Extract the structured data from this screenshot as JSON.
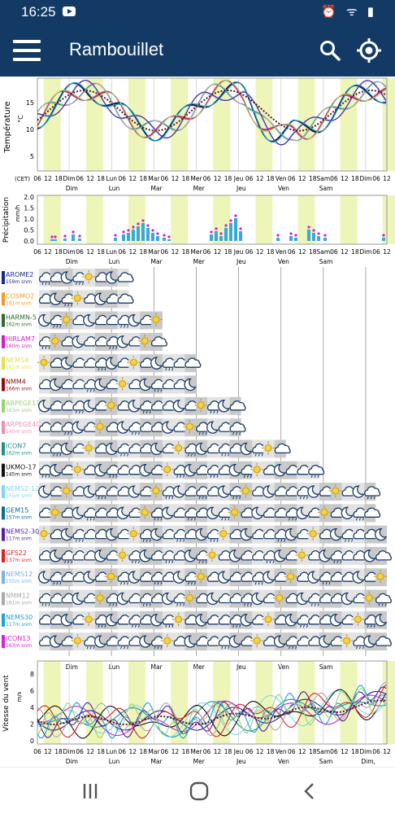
{
  "status_bar": {
    "time": "16:25"
  },
  "app_bar": {
    "title": "Rambouillet",
    "icons": [
      "menu-icon",
      "search-icon",
      "location-target-icon"
    ]
  },
  "temperature_chart": {
    "ylabel": "Température",
    "unit": "°C",
    "yticks": [
      "15",
      "10",
      "5"
    ],
    "cet_label": "(CET)",
    "xticks": [
      "06",
      "12",
      "18",
      "Dim",
      "06",
      "12",
      "18",
      "Lun",
      "06",
      "12",
      "18",
      "Mar",
      "06",
      "12",
      "18",
      "Mer",
      "06",
      "12",
      "18",
      "Jeu",
      "06",
      "12",
      "18",
      "Ven",
      "06",
      "12",
      "18",
      "Sam",
      "06",
      "12",
      "18",
      "Dim",
      "06",
      "12"
    ],
    "day_labels": [
      "Dim",
      "Lun",
      "Mar",
      "Mer",
      "Jeu",
      "Ven",
      "Sam"
    ]
  },
  "precip_chart": {
    "ylabel": "Précipitation",
    "unit": "mm/h",
    "yticks": [
      "2.0",
      "1.5",
      "1.0",
      "0.5",
      "0.0"
    ],
    "xticks": [
      "06",
      "12",
      "18",
      "Dim",
      "06",
      "12",
      "18",
      "Lun",
      "06",
      "12",
      "18",
      "Mar",
      "06",
      "12",
      "18",
      "Mer",
      "06",
      "12",
      "18",
      "Jeu",
      "06",
      "12",
      "18",
      "Ven",
      "06",
      "12",
      "18",
      "Sam",
      "06",
      "12",
      "18",
      "Dim",
      "06",
      "12"
    ],
    "day_labels": [
      "Dim",
      "Lun",
      "Mar",
      "Mer",
      "Jeu",
      "Ven",
      "Sam"
    ]
  },
  "models": [
    {
      "name": "AROME2",
      "alt": "159m snm",
      "color": "#1a2a8c",
      "n": 8
    },
    {
      "name": "COSMO2",
      "alt": "161m snm",
      "color": "#f39c1f",
      "n": 8
    },
    {
      "name": "HARMN-5",
      "alt": "162m snm",
      "color": "#2e6b2e",
      "n": 11
    },
    {
      "name": "HIRLAM7",
      "alt": "160m snm",
      "color": "#d11fc8",
      "n": 11
    },
    {
      "name": "NEMS4",
      "alt": "162m snm",
      "color": "#e7e04a",
      "n": 14
    },
    {
      "name": "NMM4",
      "alt": "166m snm",
      "color": "#8c1010",
      "n": 14
    },
    {
      "name": "ARPEGE11",
      "alt": "163m snm",
      "color": "#9ad17a",
      "n": 18
    },
    {
      "name": "ARPEGE40",
      "alt": "140m snm",
      "color": "#f08fb0",
      "n": 18
    },
    {
      "name": "ICON7",
      "alt": "162m snm",
      "color": "#1f8f8f",
      "n": 22
    },
    {
      "name": "UKMO-17",
      "alt": "145m snm",
      "color": "#111111",
      "n": 25
    },
    {
      "name": "NEMS2-12",
      "alt": "155m snm",
      "color": "#7fd7ef",
      "n": 30
    },
    {
      "name": "GEM15",
      "alt": "157m snm",
      "color": "#0c6e8a",
      "n": 30
    },
    {
      "name": "NEMS2-30",
      "alt": "117m snm",
      "color": "#5a1f9c",
      "n": 31
    },
    {
      "name": "GFS22",
      "alt": "137m snm",
      "color": "#e01f1f",
      "n": 31
    },
    {
      "name": "NEMS12",
      "alt": "155m snm",
      "color": "#7fb0df",
      "n": 31
    },
    {
      "name": "NMM12",
      "alt": "161m snm",
      "color": "#aaaaaa",
      "n": 31
    },
    {
      "name": "NEMS30",
      "alt": "117m snm",
      "color": "#1fa0d8",
      "n": 31
    },
    {
      "name": "ICON13",
      "alt": "163m snm",
      "color": "#e01fd8",
      "n": 31
    }
  ],
  "icon_day_labels": [
    "Dim",
    "Lun",
    "Mar",
    "Mer",
    "Jeu",
    "Ven",
    "Sam"
  ],
  "wind_chart": {
    "ylabel": "Vitesse du vent",
    "unit": "m/s",
    "yticks": [
      "8",
      "6",
      "4",
      "2",
      "0"
    ],
    "xticks": [
      "06",
      "12",
      "18",
      "Dim",
      "06",
      "12",
      "18",
      "Lun",
      "06",
      "12",
      "18",
      "Mar",
      "06",
      "12",
      "18",
      "Mer",
      "06",
      "12",
      "18",
      "Jeu",
      "06",
      "12",
      "18",
      "Ven",
      "06",
      "12",
      "18",
      "Sam",
      "06",
      "12",
      "18",
      "Dim",
      "06",
      "12"
    ],
    "day_labels": [
      "Dim",
      "Lun",
      "Mar",
      "Mer",
      "Jeu",
      "Ven",
      "Sam",
      "Dim,"
    ]
  },
  "colors": {
    "appbar": "#123a64",
    "day_band": "#eef5b9",
    "grid": "#cccccc"
  }
}
